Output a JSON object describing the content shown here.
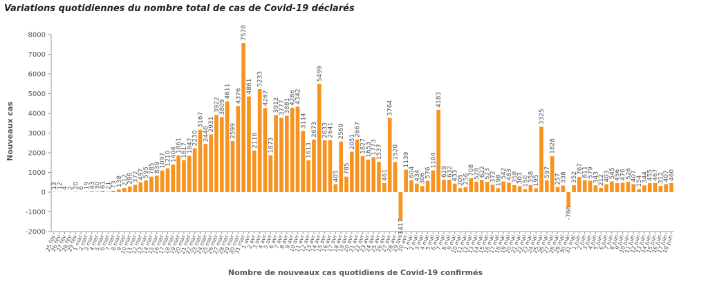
{
  "chart_data": {
    "type": "bar",
    "title": "Variations quotidiennes du nombre total de cas de Covid-19 déclarés",
    "x_label": "Nombre de nouveaux cas quotidiens de Covid-19 confirmés",
    "y_label": "Nouveaux cas",
    "color": "#f7931e",
    "ylim": [
      -2000,
      8000
    ],
    "yticks": [
      -2000,
      -1000,
      0,
      1000,
      2000,
      3000,
      4000,
      5000,
      6000,
      7000,
      8000
    ],
    "categories": [
      "25 fév",
      "26 fév",
      "27 fév",
      "28 fév",
      "29 fév",
      "1 mar",
      "2 mar",
      "3 mar",
      "4 mar",
      "5 mar",
      "6 mar",
      "7 mar",
      "8 mar",
      "9 mar",
      "10 mar",
      "11 mar",
      "12 mar",
      "13 mar",
      "14 mar",
      "15 mar",
      "16 mar",
      "17 mar",
      "18 mar",
      "19 mar",
      "20 mar",
      "21 mar",
      "22 mar",
      "23 mar",
      "24 mar",
      "25 mar",
      "26 mar",
      "27 mar",
      "28 mar",
      "29 mar",
      "30 mar",
      "31 mar",
      "1 avr",
      "2 avr",
      "3 avr",
      "4 avr",
      "5 avr",
      "6 avr",
      "7 avr",
      "8 avr",
      "9 avr",
      "10 avr",
      "11 avr",
      "12 avr",
      "13 avr",
      "14 avr",
      "15 avr",
      "16 avr",
      "17 avr",
      "18 avr",
      "19 avr",
      "20 avr",
      "21 avr",
      "22 avr",
      "23 avr",
      "24 avr",
      "25 avr",
      "26 avr",
      "27 avr",
      "28 avr",
      "29 avr",
      "30 avr",
      "1 mai",
      "2 mai",
      "3 mai",
      "4 mai",
      "5 mai",
      "6 mai",
      "7 mai",
      "8 mai",
      "9 mai",
      "10 mai",
      "11 mai",
      "12 mai",
      "13 mai",
      "14 mai",
      "15 mai",
      "16 mai",
      "17 mai",
      "18 mai",
      "19 mai",
      "20 mai",
      "21 mai",
      "22 mai",
      "23 mai",
      "24 mai",
      "25 mai",
      "26 mai",
      "27 mai",
      "28 mai",
      "29 mai",
      "30 mai",
      "31 mai",
      "1 juin",
      "2 juin",
      "3 juin",
      "4 juin",
      "5 juin",
      "6 juin",
      "7 juin",
      "8 juin",
      "9 juin",
      "10 juin",
      "11 juin",
      "12 juin",
      "13 juin",
      "14 juin",
      "15 juin",
      "16 juin",
      "17 juin",
      "18 juin"
    ],
    "values": [
      13,
      12,
      4,
      2,
      20,
      6,
      19,
      43,
      30,
      61,
      21,
      73,
      138,
      212,
      286,
      372,
      497,
      595,
      785,
      839,
      1097,
      1210,
      1404,
      1861,
      1617,
      1847,
      2230,
      3167,
      2446,
      2931,
      3922,
      3809,
      4611,
      2599,
      4376,
      7578,
      4861,
      2116,
      5233,
      4267,
      1873,
      3912,
      3777,
      3881,
      4286,
      4342,
      3114,
      1613,
      2673,
      5499,
      2633,
      2641,
      405,
      2569,
      785,
      2051,
      2667,
      1827,
      1653,
      1773,
      1537,
      461,
      3764,
      1520,
      -1417,
      1139,
      604,
      434,
      306,
      576,
      1104,
      4183,
      629,
      632,
      433,
      205,
      256,
      708,
      528,
      622,
      523,
      372,
      198,
      542,
      483,
      358,
      303,
      150,
      358,
      195,
      3325,
      597,
      1828,
      257,
      338,
      -766,
      352,
      767,
      611,
      579,
      343,
      212,
      403,
      545,
      456,
      476,
      526,
      407,
      154,
      344,
      455,
      467,
      312,
      407,
      460
    ]
  }
}
